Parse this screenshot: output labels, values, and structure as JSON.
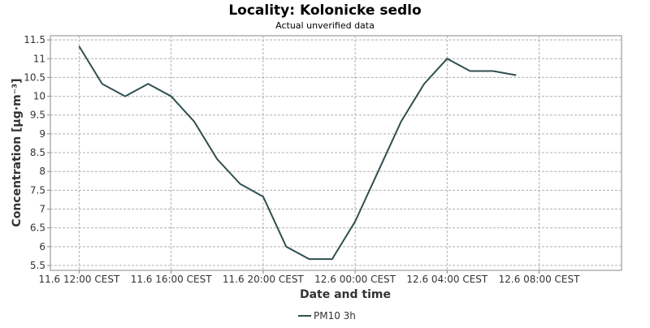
{
  "chart_data": {
    "type": "line",
    "title": "Locality: Kolonicke sedlo",
    "subtitle": "Actual unverified data",
    "x_label": "Date and time",
    "y_label": "Concentration [µg·m⁻³]",
    "x": [
      "11.6 12:00",
      "11.6 13:00",
      "11.6 14:00",
      "11.6 15:00",
      "11.6 16:00",
      "11.6 17:00",
      "11.6 18:00",
      "11.6 19:00",
      "11.6 20:00",
      "11.6 21:00",
      "11.6 22:00",
      "11.6 23:00",
      "12.6 00:00",
      "12.6 01:00",
      "12.6 02:00",
      "12.6 03:00",
      "12.6 04:00",
      "12.6 05:00",
      "12.6 06:00",
      "12.6 07:00"
    ],
    "series": [
      {
        "name": "PM10 3h",
        "color": "#2f4f4f",
        "values": [
          11.33,
          10.33,
          10.0,
          10.33,
          10.0,
          9.33,
          8.33,
          7.67,
          7.33,
          6.0,
          5.67,
          5.67,
          6.67,
          8.0,
          9.33,
          10.33,
          11.0,
          10.67,
          10.67,
          10.56
        ]
      }
    ],
    "xlim": [
      "11.6 10:45",
      "12.6 11:35"
    ],
    "xticks": [
      {
        "value": "11.6 12:00",
        "label": "11.6 12:00 CEST"
      },
      {
        "value": "11.6 16:00",
        "label": "11.6 16:00 CEST"
      },
      {
        "value": "11.6 20:00",
        "label": "11.6 20:00 CEST"
      },
      {
        "value": "12.6 00:00",
        "label": "12.6 00:00 CEST"
      },
      {
        "value": "12.6 04:00",
        "label": "12.6 04:00 CEST"
      },
      {
        "value": "12.6 08:00",
        "label": "12.6 08:00 CEST"
      }
    ],
    "ylim": [
      5.37,
      11.61
    ],
    "yticks": [
      5.5,
      6,
      6.5,
      7,
      7.5,
      8,
      8.5,
      9,
      9.5,
      10,
      10.5,
      11,
      11.5
    ],
    "grid": true,
    "legend": "bottom"
  }
}
